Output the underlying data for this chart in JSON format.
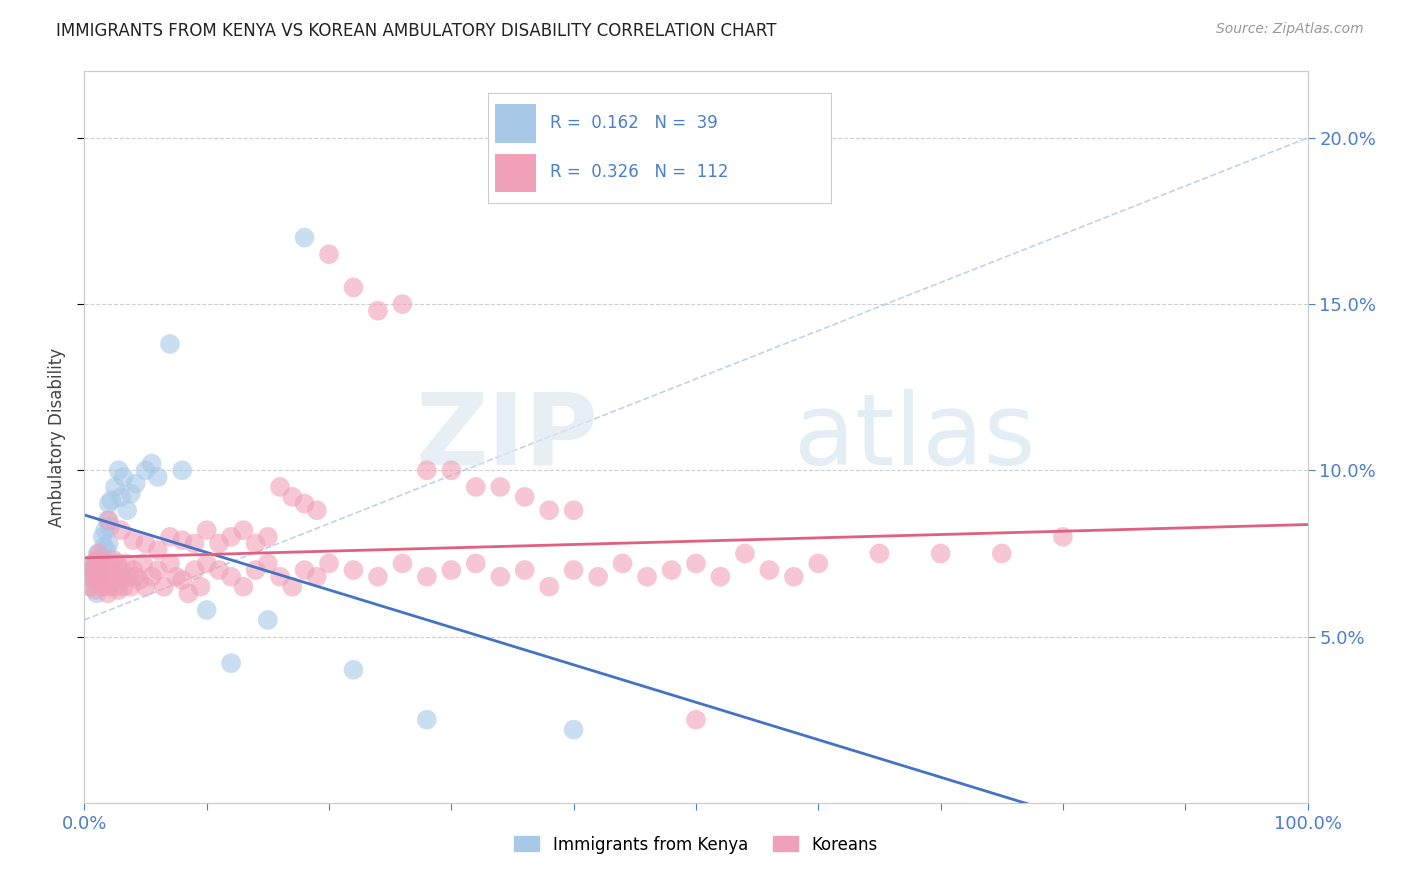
{
  "title": "IMMIGRANTS FROM KENYA VS KOREAN AMBULATORY DISABILITY CORRELATION CHART",
  "source": "Source: ZipAtlas.com",
  "ylabel": "Ambulatory Disability",
  "legend_label_1": "Immigrants from Kenya",
  "legend_label_2": "Koreans",
  "R1": 0.162,
  "N1": 39,
  "R2": 0.326,
  "N2": 112,
  "color_kenya": "#a8c8e8",
  "color_korean": "#f0a0b8",
  "color_line_kenya": "#4472c4",
  "color_line_korean": "#e06080",
  "color_trend_dashed": "#b0c8e0",
  "xlim": [
    0.0,
    1.0
  ],
  "ylim": [
    0.0,
    0.22
  ],
  "x_ticks": [
    0.0,
    0.1,
    0.2,
    0.3,
    0.4,
    0.5,
    0.6,
    0.7,
    0.8,
    0.9,
    1.0
  ],
  "x_tick_labels": [
    "0.0%",
    "",
    "",
    "",
    "",
    "",
    "",
    "",
    "",
    "",
    "100.0%"
  ],
  "y_ticks": [
    0.05,
    0.1,
    0.15,
    0.2
  ],
  "y_tick_labels": [
    "5.0%",
    "10.0%",
    "15.0%",
    "20.0%"
  ],
  "background_color": "#ffffff",
  "grid_color": "#d0d0d0",
  "watermark_zip": "ZIP",
  "watermark_atlas": "atlas",
  "kenya_x": [
    0.005,
    0.006,
    0.007,
    0.008,
    0.009,
    0.01,
    0.01,
    0.011,
    0.012,
    0.013,
    0.014,
    0.015,
    0.016,
    0.017,
    0.018,
    0.019,
    0.02,
    0.02,
    0.021,
    0.022,
    0.025,
    0.028,
    0.03,
    0.032,
    0.035,
    0.038,
    0.042,
    0.05,
    0.055,
    0.06,
    0.07,
    0.08,
    0.1,
    0.12,
    0.15,
    0.18,
    0.22,
    0.28,
    0.4
  ],
  "kenya_y": [
    0.065,
    0.07,
    0.068,
    0.072,
    0.067,
    0.063,
    0.071,
    0.075,
    0.069,
    0.073,
    0.074,
    0.08,
    0.077,
    0.082,
    0.076,
    0.085,
    0.09,
    0.078,
    0.083,
    0.091,
    0.095,
    0.1,
    0.092,
    0.098,
    0.088,
    0.093,
    0.096,
    0.1,
    0.102,
    0.098,
    0.138,
    0.1,
    0.058,
    0.042,
    0.055,
    0.17,
    0.04,
    0.025,
    0.022
  ],
  "korean_x": [
    0.004,
    0.005,
    0.006,
    0.007,
    0.008,
    0.009,
    0.01,
    0.01,
    0.011,
    0.012,
    0.013,
    0.014,
    0.015,
    0.016,
    0.017,
    0.018,
    0.019,
    0.02,
    0.02,
    0.021,
    0.022,
    0.023,
    0.024,
    0.025,
    0.026,
    0.027,
    0.028,
    0.029,
    0.03,
    0.032,
    0.034,
    0.036,
    0.038,
    0.04,
    0.042,
    0.045,
    0.048,
    0.05,
    0.055,
    0.06,
    0.065,
    0.07,
    0.075,
    0.08,
    0.085,
    0.09,
    0.095,
    0.1,
    0.11,
    0.12,
    0.13,
    0.14,
    0.15,
    0.16,
    0.17,
    0.18,
    0.19,
    0.2,
    0.22,
    0.24,
    0.26,
    0.28,
    0.3,
    0.32,
    0.34,
    0.36,
    0.38,
    0.4,
    0.42,
    0.44,
    0.46,
    0.48,
    0.5,
    0.52,
    0.54,
    0.56,
    0.58,
    0.6,
    0.65,
    0.7,
    0.75,
    0.8,
    0.02,
    0.03,
    0.04,
    0.05,
    0.06,
    0.07,
    0.08,
    0.09,
    0.1,
    0.11,
    0.12,
    0.13,
    0.14,
    0.15,
    0.16,
    0.17,
    0.18,
    0.19,
    0.2,
    0.22,
    0.24,
    0.26,
    0.28,
    0.3,
    0.32,
    0.34,
    0.36,
    0.38,
    0.4,
    0.5
  ],
  "korean_y": [
    0.068,
    0.065,
    0.07,
    0.072,
    0.067,
    0.064,
    0.071,
    0.073,
    0.069,
    0.075,
    0.068,
    0.07,
    0.065,
    0.072,
    0.068,
    0.067,
    0.063,
    0.065,
    0.07,
    0.068,
    0.071,
    0.069,
    0.073,
    0.065,
    0.067,
    0.072,
    0.064,
    0.068,
    0.07,
    0.065,
    0.072,
    0.068,
    0.065,
    0.07,
    0.068,
    0.067,
    0.072,
    0.065,
    0.068,
    0.07,
    0.065,
    0.072,
    0.068,
    0.067,
    0.063,
    0.07,
    0.065,
    0.072,
    0.07,
    0.068,
    0.065,
    0.07,
    0.072,
    0.068,
    0.065,
    0.07,
    0.068,
    0.072,
    0.07,
    0.068,
    0.072,
    0.068,
    0.07,
    0.072,
    0.068,
    0.07,
    0.065,
    0.07,
    0.068,
    0.072,
    0.068,
    0.07,
    0.072,
    0.068,
    0.075,
    0.07,
    0.068,
    0.072,
    0.075,
    0.075,
    0.075,
    0.08,
    0.085,
    0.082,
    0.079,
    0.078,
    0.076,
    0.08,
    0.079,
    0.078,
    0.082,
    0.078,
    0.08,
    0.082,
    0.078,
    0.08,
    0.095,
    0.092,
    0.09,
    0.088,
    0.165,
    0.155,
    0.148,
    0.15,
    0.1,
    0.1,
    0.095,
    0.095,
    0.092,
    0.088,
    0.088,
    0.025
  ]
}
